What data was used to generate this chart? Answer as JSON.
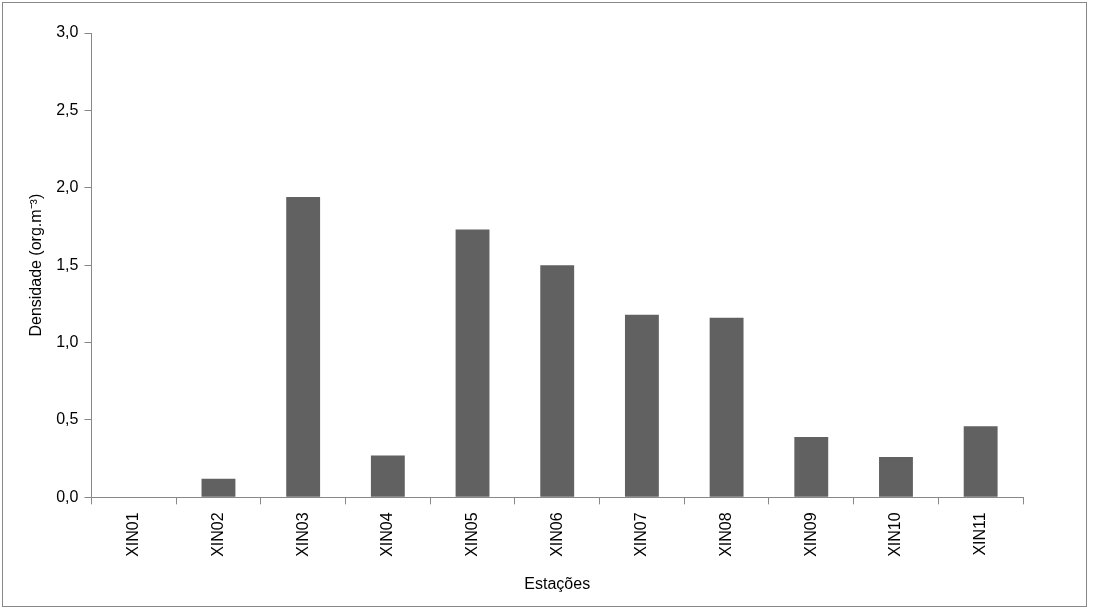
{
  "chart_data": {
    "type": "bar",
    "xlabel": "Estações",
    "ylabel": "Densidade (org.m⁻³)",
    "categories": [
      "XIN01",
      "XIN02",
      "XIN03",
      "XIN04",
      "XIN05",
      "XIN06",
      "XIN07",
      "XIN08",
      "XIN09",
      "XIN10",
      "XIN11"
    ],
    "values": [
      0,
      0.12,
      1.94,
      0.27,
      1.73,
      1.5,
      1.18,
      1.16,
      0.39,
      0.26,
      0.46
    ],
    "color": "#616161",
    "ylim": [
      0,
      3
    ],
    "yticks": [
      {
        "value": 0,
        "label": "0,0"
      },
      {
        "value": 0.5,
        "label": "0,5"
      },
      {
        "value": 1,
        "label": "1,0"
      },
      {
        "value": 1.5,
        "label": "1,5"
      },
      {
        "value": 2,
        "label": "2,0"
      },
      {
        "value": 2.5,
        "label": "2,5"
      },
      {
        "value": 3,
        "label": "3,0"
      }
    ],
    "grid": false,
    "legend": false
  }
}
